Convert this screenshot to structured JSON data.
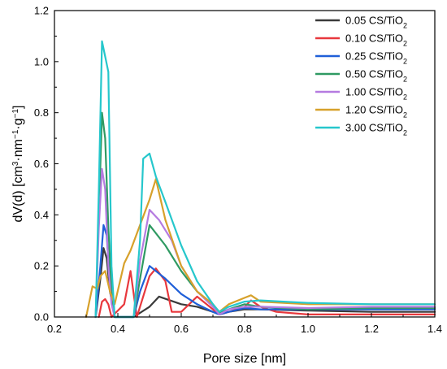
{
  "chart_data": {
    "type": "line",
    "xlabel": "Pore size [nm]",
    "ylabel_parts": [
      "dV(d) [cm",
      "3",
      "·nm",
      "−1",
      "·g",
      "−1",
      "]"
    ],
    "xlim": [
      0.2,
      1.4
    ],
    "ylim": [
      0.0,
      1.2
    ],
    "xticks": [
      "0.2",
      "0.4",
      "0.6",
      "0.8",
      "1.0",
      "1.2",
      "1.4"
    ],
    "yticks": [
      "0.0",
      "0.2",
      "0.4",
      "0.6",
      "0.8",
      "1.0",
      "1.2"
    ],
    "legend_position": "top-right",
    "series": [
      {
        "name": "0.05 CS/TiO",
        "name_sub": "2",
        "color": "#3a3a3a",
        "x": [
          0.33,
          0.345,
          0.355,
          0.365,
          0.375,
          0.39,
          0.45,
          0.5,
          0.53,
          0.6,
          0.65,
          0.7,
          0.72,
          0.75,
          0.8,
          0.85,
          1.0,
          1.2,
          1.4
        ],
        "y": [
          0.0,
          0.15,
          0.27,
          0.23,
          0.1,
          0.0,
          0.0,
          0.04,
          0.08,
          0.05,
          0.04,
          0.02,
          0.01,
          0.02,
          0.03,
          0.03,
          0.025,
          0.02,
          0.02
        ]
      },
      {
        "name": "0.10 CS/TiO",
        "name_sub": "2",
        "color": "#e8383d",
        "x": [
          0.34,
          0.35,
          0.36,
          0.37,
          0.38,
          0.42,
          0.44,
          0.46,
          0.5,
          0.52,
          0.55,
          0.57,
          0.6,
          0.65,
          0.7,
          0.72,
          0.75,
          0.8,
          0.82,
          0.85,
          0.9,
          1.0,
          1.2,
          1.4
        ],
        "y": [
          0.0,
          0.06,
          0.07,
          0.05,
          0.0,
          0.05,
          0.18,
          0.0,
          0.16,
          0.19,
          0.14,
          0.02,
          0.02,
          0.08,
          0.03,
          0.01,
          0.02,
          0.04,
          0.065,
          0.04,
          0.02,
          0.01,
          0.01,
          0.01
        ]
      },
      {
        "name": "0.25 CS/TiO",
        "name_sub": "2",
        "color": "#1f5fd8",
        "x": [
          0.33,
          0.345,
          0.355,
          0.365,
          0.375,
          0.39,
          0.45,
          0.47,
          0.5,
          0.55,
          0.6,
          0.65,
          0.7,
          0.72,
          0.75,
          0.8,
          0.85,
          1.0,
          1.2,
          1.4
        ],
        "y": [
          0.0,
          0.2,
          0.36,
          0.32,
          0.12,
          0.0,
          0.0,
          0.1,
          0.2,
          0.15,
          0.09,
          0.05,
          0.02,
          0.01,
          0.02,
          0.035,
          0.03,
          0.03,
          0.03,
          0.03
        ]
      },
      {
        "name": "0.50 CS/TiO",
        "name_sub": "2",
        "color": "#2f9a62",
        "x": [
          0.33,
          0.34,
          0.35,
          0.36,
          0.37,
          0.38,
          0.39,
          0.45,
          0.47,
          0.5,
          0.55,
          0.6,
          0.65,
          0.7,
          0.72,
          0.75,
          0.8,
          0.85,
          1.0,
          1.2,
          1.4
        ],
        "y": [
          0.0,
          0.4,
          0.8,
          0.7,
          0.35,
          0.1,
          0.0,
          0.0,
          0.15,
          0.36,
          0.28,
          0.18,
          0.1,
          0.05,
          0.015,
          0.03,
          0.05,
          0.04,
          0.03,
          0.035,
          0.035
        ]
      },
      {
        "name": "1.00 CS/TiO",
        "name_sub": "2",
        "color": "#b57be0",
        "x": [
          0.33,
          0.34,
          0.35,
          0.36,
          0.37,
          0.38,
          0.39,
          0.45,
          0.47,
          0.5,
          0.53,
          0.57,
          0.6,
          0.65,
          0.7,
          0.72,
          0.75,
          0.8,
          0.85,
          1.0,
          1.2,
          1.4
        ],
        "y": [
          0.0,
          0.35,
          0.58,
          0.5,
          0.2,
          0.05,
          0.0,
          0.0,
          0.22,
          0.42,
          0.38,
          0.3,
          0.2,
          0.1,
          0.04,
          0.01,
          0.03,
          0.04,
          0.04,
          0.035,
          0.04,
          0.04
        ]
      },
      {
        "name": "1.20 CS/TiO",
        "name_sub": "2",
        "color": "#d7a12b",
        "x": [
          0.3,
          0.32,
          0.335,
          0.345,
          0.36,
          0.375,
          0.39,
          0.42,
          0.44,
          0.47,
          0.5,
          0.52,
          0.55,
          0.6,
          0.65,
          0.7,
          0.72,
          0.75,
          0.8,
          0.82,
          0.85,
          1.0,
          1.2,
          1.4
        ],
        "y": [
          0.0,
          0.12,
          0.11,
          0.16,
          0.18,
          0.1,
          0.05,
          0.21,
          0.26,
          0.36,
          0.46,
          0.54,
          0.38,
          0.2,
          0.1,
          0.05,
          0.02,
          0.05,
          0.075,
          0.085,
          0.06,
          0.05,
          0.05,
          0.05
        ]
      },
      {
        "name": "3.00 CS/TiO",
        "name_sub": "2",
        "color": "#26c7cc",
        "x": [
          0.33,
          0.34,
          0.35,
          0.36,
          0.37,
          0.38,
          0.39,
          0.45,
          0.47,
          0.48,
          0.5,
          0.52,
          0.55,
          0.6,
          0.65,
          0.7,
          0.72,
          0.75,
          0.8,
          0.85,
          1.0,
          1.2,
          1.4
        ],
        "y": [
          0.0,
          0.5,
          1.08,
          1.02,
          0.96,
          0.2,
          0.0,
          0.0,
          0.3,
          0.62,
          0.64,
          0.55,
          0.45,
          0.28,
          0.14,
          0.05,
          0.02,
          0.04,
          0.06,
          0.065,
          0.055,
          0.05,
          0.05
        ]
      }
    ]
  }
}
